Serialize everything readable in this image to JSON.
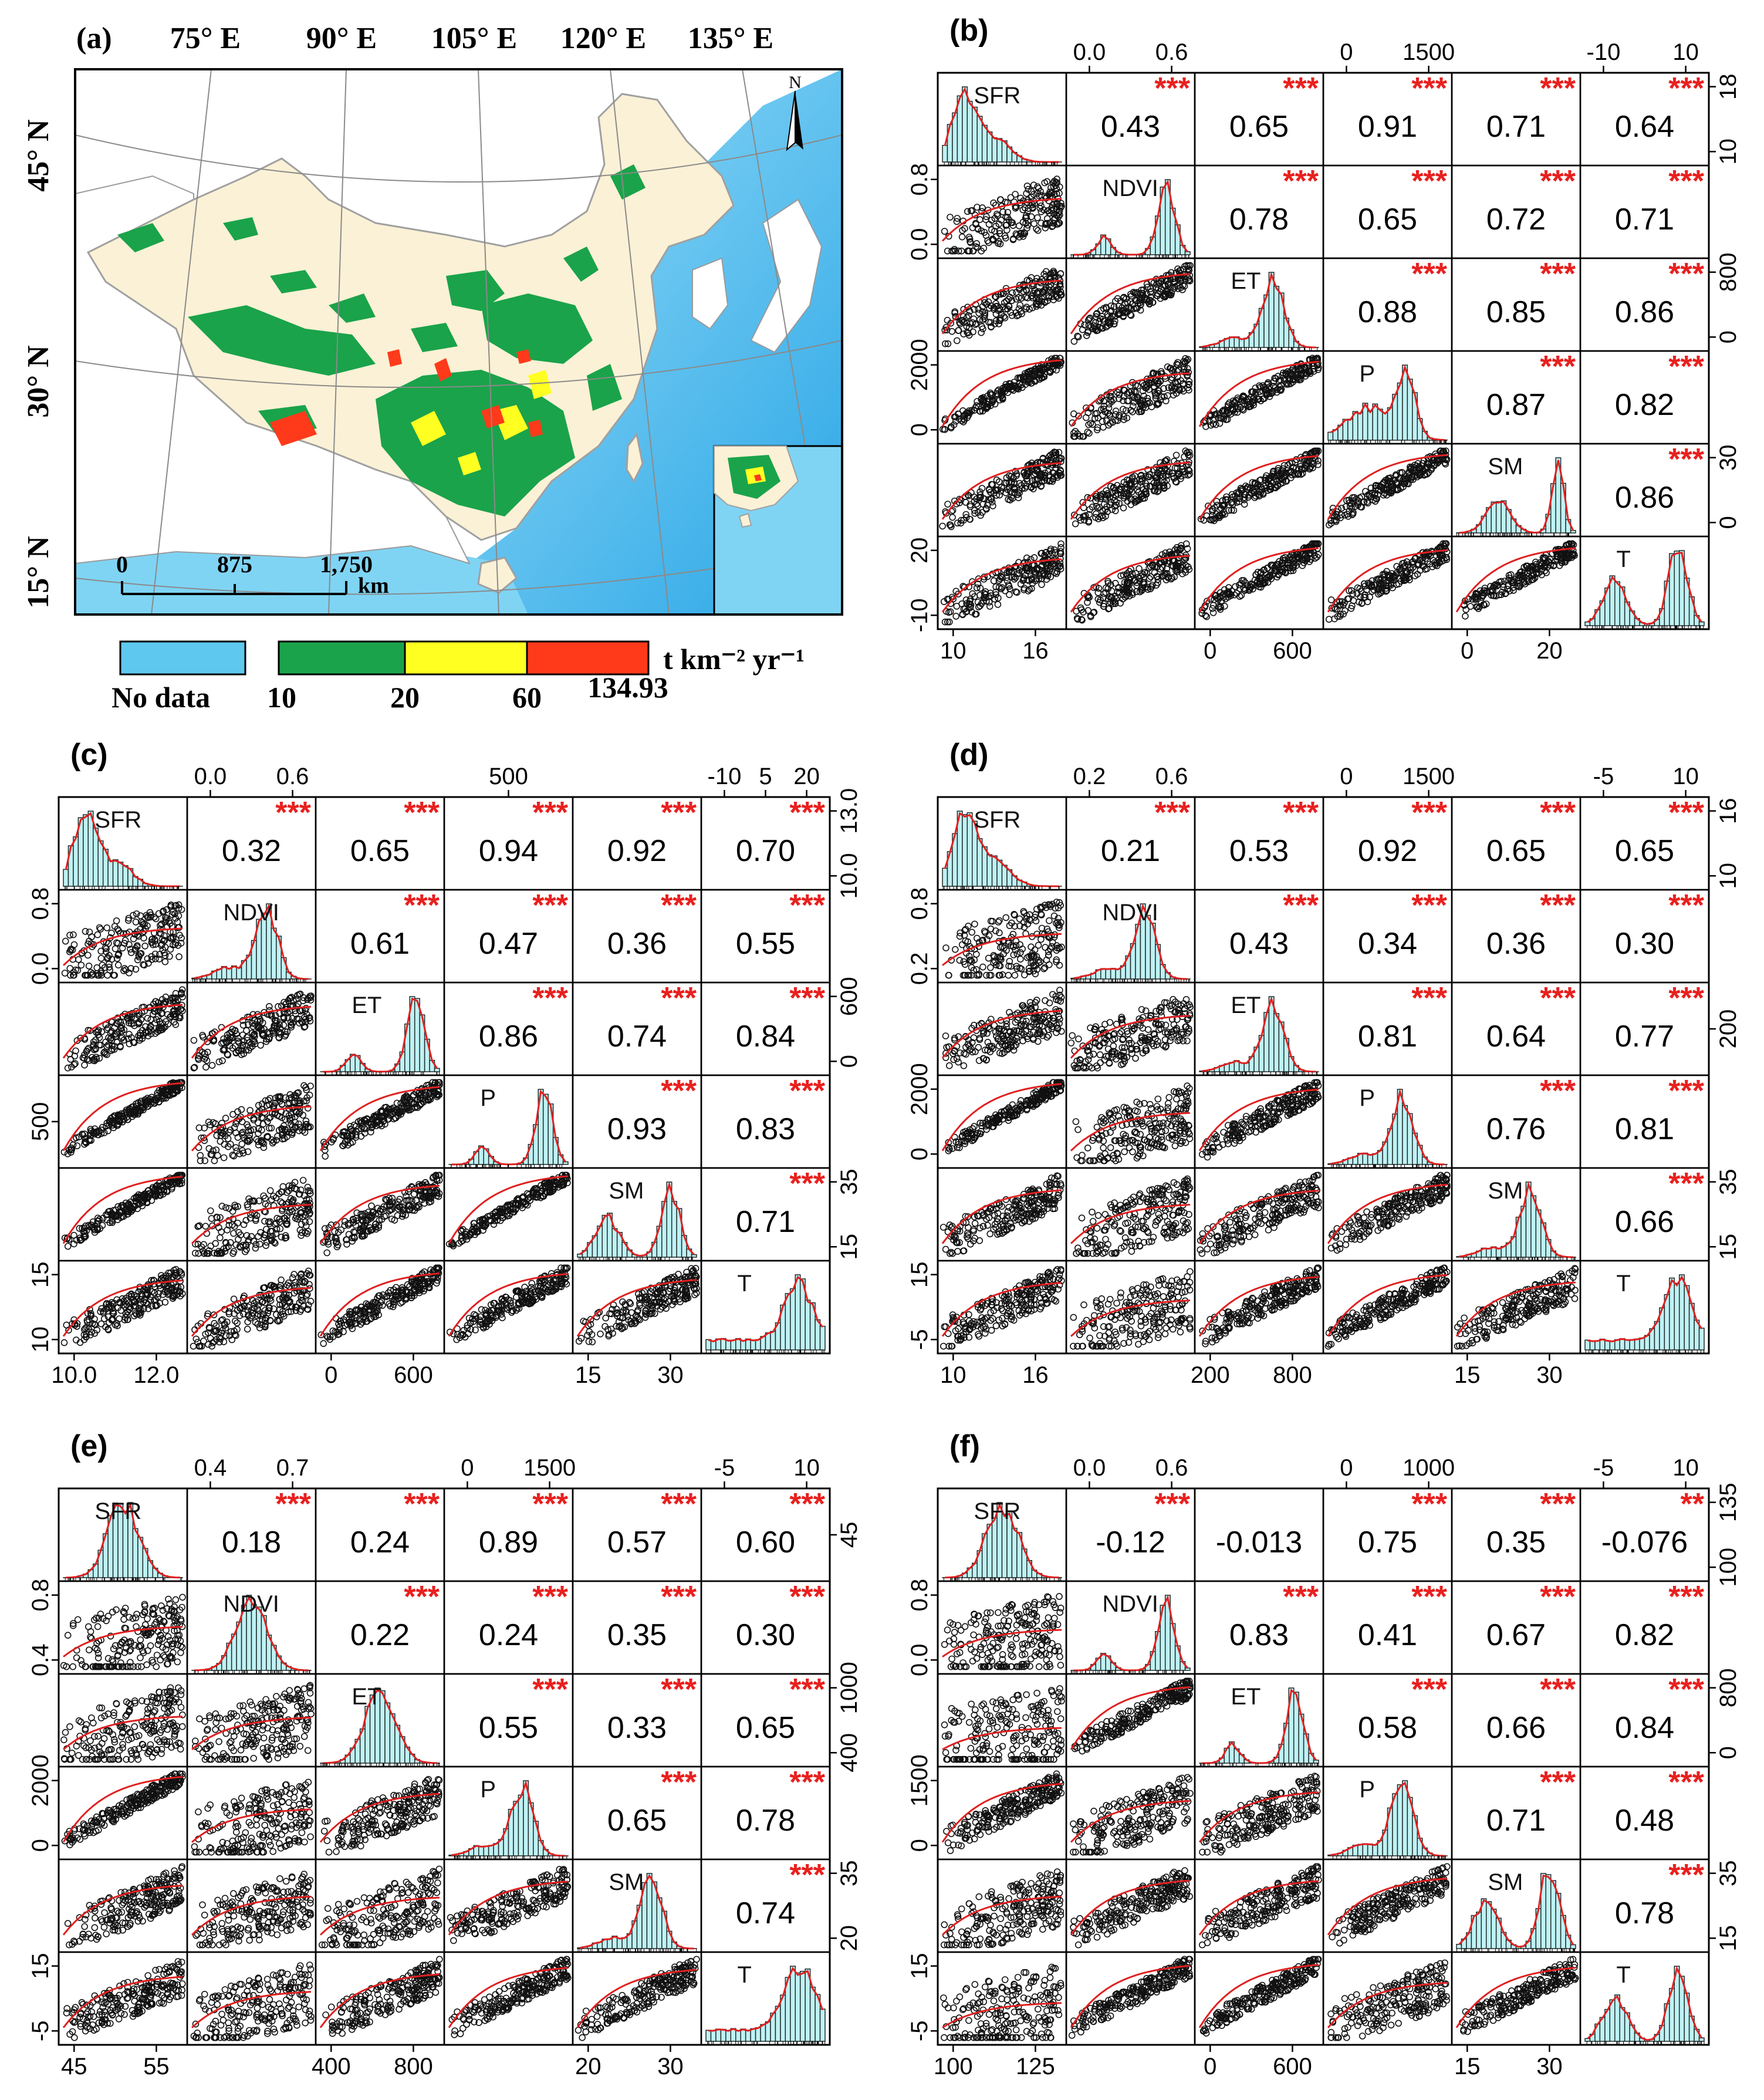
{
  "map_panel": {
    "label": "(a)",
    "lon_labels": [
      "75° E",
      "90° E",
      "105° E",
      "120° E",
      "135° E"
    ],
    "lat_labels": [
      "45° N",
      "30° N",
      "15° N"
    ],
    "north_label": "N",
    "scale": {
      "ticks": [
        "0",
        "875",
        "1,750"
      ],
      "unit": "km"
    },
    "legend": {
      "nodata_label": "No data",
      "unit_label": "t km⁻² yr⁻¹",
      "breaks": [
        "10",
        "20",
        "60",
        "134.93"
      ],
      "colors": {
        "nodata": "#5ec8ee",
        "low": "#1aa34a",
        "mid": "#ffff22",
        "high": "#ff3a1a",
        "china": "#fbf1d6",
        "sea": "#7fd4f4",
        "deepsea": "#2ea8e8",
        "foreign": "#ffffff"
      }
    }
  },
  "chart_data": [
    {
      "type": "pairs_matrix",
      "panel": "(b)",
      "variables": [
        "SFR",
        "NDVI",
        "ET",
        "P",
        "SM",
        "T"
      ],
      "correlations": [
        {
          "pair": "SFR-NDVI",
          "r": "0.43",
          "sig": "***"
        },
        {
          "pair": "SFR-ET",
          "r": "0.65",
          "sig": "***"
        },
        {
          "pair": "SFR-P",
          "r": "0.91",
          "sig": "***"
        },
        {
          "pair": "SFR-SM",
          "r": "0.71",
          "sig": "***"
        },
        {
          "pair": "SFR-T",
          "r": "0.64",
          "sig": "***"
        },
        {
          "pair": "NDVI-ET",
          "r": "0.78",
          "sig": "***"
        },
        {
          "pair": "NDVI-P",
          "r": "0.65",
          "sig": "***"
        },
        {
          "pair": "NDVI-SM",
          "r": "0.72",
          "sig": "***"
        },
        {
          "pair": "NDVI-T",
          "r": "0.71",
          "sig": "***"
        },
        {
          "pair": "ET-P",
          "r": "0.88",
          "sig": "***"
        },
        {
          "pair": "ET-SM",
          "r": "0.85",
          "sig": "***"
        },
        {
          "pair": "ET-T",
          "r": "0.86",
          "sig": "***"
        },
        {
          "pair": "P-SM",
          "r": "0.87",
          "sig": "***"
        },
        {
          "pair": "P-T",
          "r": "0.82",
          "sig": "***"
        },
        {
          "pair": "SM-T",
          "r": "0.86",
          "sig": "***"
        }
      ],
      "top_ticks": [
        [],
        [
          "0.0",
          "0.6"
        ],
        [],
        [
          "0",
          "1500"
        ],
        [],
        [
          "-10",
          "10"
        ]
      ],
      "bottom_ticks": [
        [
          "10",
          "16"
        ],
        [],
        [
          "0",
          "600"
        ],
        [],
        [
          "0",
          "20"
        ],
        []
      ],
      "left_ticks": [
        [],
        [
          "0.0",
          "0.8"
        ],
        [],
        [
          "0",
          "2000"
        ],
        [],
        [
          "-10",
          "20"
        ]
      ],
      "right_ticks": [
        [
          "10",
          "18"
        ],
        [],
        [
          "0",
          "800"
        ],
        [],
        [
          "0",
          "30"
        ],
        []
      ],
      "hist_shapes": [
        "skew",
        "twin",
        "peak",
        "plateau",
        "bimodal_right",
        "bimodal"
      ]
    },
    {
      "type": "pairs_matrix",
      "panel": "(c)",
      "variables": [
        "SFR",
        "NDVI",
        "ET",
        "P",
        "SM",
        "T"
      ],
      "correlations": [
        {
          "pair": "SFR-NDVI",
          "r": "0.32",
          "sig": "***"
        },
        {
          "pair": "SFR-ET",
          "r": "0.65",
          "sig": "***"
        },
        {
          "pair": "SFR-P",
          "r": "0.94",
          "sig": "***"
        },
        {
          "pair": "SFR-SM",
          "r": "0.92",
          "sig": "***"
        },
        {
          "pair": "SFR-T",
          "r": "0.70",
          "sig": "***"
        },
        {
          "pair": "NDVI-ET",
          "r": "0.61",
          "sig": "***"
        },
        {
          "pair": "NDVI-P",
          "r": "0.47",
          "sig": "***"
        },
        {
          "pair": "NDVI-SM",
          "r": "0.36",
          "sig": "***"
        },
        {
          "pair": "NDVI-T",
          "r": "0.55",
          "sig": "***"
        },
        {
          "pair": "ET-P",
          "r": "0.86",
          "sig": "***"
        },
        {
          "pair": "ET-SM",
          "r": "0.74",
          "sig": "***"
        },
        {
          "pair": "ET-T",
          "r": "0.84",
          "sig": "***"
        },
        {
          "pair": "P-SM",
          "r": "0.93",
          "sig": "***"
        },
        {
          "pair": "P-T",
          "r": "0.83",
          "sig": "***"
        },
        {
          "pair": "SM-T",
          "r": "0.71",
          "sig": "***"
        }
      ],
      "top_ticks": [
        [],
        [
          "0.0",
          "0.6"
        ],
        [],
        [
          "500"
        ],
        [],
        [
          "-10",
          "5",
          "20"
        ]
      ],
      "bottom_ticks": [
        [
          "10.0",
          "12.0"
        ],
        [],
        [
          "0",
          "600"
        ],
        [],
        [
          "15",
          "30"
        ],
        []
      ],
      "left_ticks": [
        [],
        [
          "0.0",
          "0.8"
        ],
        [],
        [
          "500"
        ],
        [],
        [
          "10",
          "15"
        ]
      ],
      "right_ticks": [
        [
          "10.0",
          "13.0"
        ],
        [],
        [
          "0",
          "600"
        ],
        [],
        [
          "15",
          "35"
        ],
        []
      ],
      "hist_shapes": [
        "skew",
        "peak",
        "twin",
        "twin",
        "bimodal",
        "rise"
      ]
    },
    {
      "type": "pairs_matrix",
      "panel": "(d)",
      "variables": [
        "SFR",
        "NDVI",
        "ET",
        "P",
        "SM",
        "T"
      ],
      "correlations": [
        {
          "pair": "SFR-NDVI",
          "r": "0.21",
          "sig": "***"
        },
        {
          "pair": "SFR-ET",
          "r": "0.53",
          "sig": "***"
        },
        {
          "pair": "SFR-P",
          "r": "0.92",
          "sig": "***"
        },
        {
          "pair": "SFR-SM",
          "r": "0.65",
          "sig": "***"
        },
        {
          "pair": "SFR-T",
          "r": "0.65",
          "sig": "***"
        },
        {
          "pair": "NDVI-ET",
          "r": "0.43",
          "sig": "***"
        },
        {
          "pair": "NDVI-P",
          "r": "0.34",
          "sig": "***"
        },
        {
          "pair": "NDVI-SM",
          "r": "0.36",
          "sig": "***"
        },
        {
          "pair": "NDVI-T",
          "r": "0.30",
          "sig": "***"
        },
        {
          "pair": "ET-P",
          "r": "0.81",
          "sig": "***"
        },
        {
          "pair": "ET-SM",
          "r": "0.64",
          "sig": "***"
        },
        {
          "pair": "ET-T",
          "r": "0.77",
          "sig": "***"
        },
        {
          "pair": "P-SM",
          "r": "0.76",
          "sig": "***"
        },
        {
          "pair": "P-T",
          "r": "0.81",
          "sig": "***"
        },
        {
          "pair": "SM-T",
          "r": "0.66",
          "sig": "***"
        }
      ],
      "top_ticks": [
        [],
        [
          "0.2",
          "0.6"
        ],
        [],
        [
          "0",
          "1500"
        ],
        [],
        [
          "-5",
          "10"
        ]
      ],
      "bottom_ticks": [
        [
          "10",
          "16"
        ],
        [],
        [
          "200",
          "800"
        ],
        [],
        [
          "15",
          "30"
        ],
        []
      ],
      "left_ticks": [
        [],
        [
          "0.2",
          "0.8"
        ],
        [],
        [
          "0",
          "2000"
        ],
        [],
        [
          "-5",
          "15"
        ]
      ],
      "right_ticks": [
        [
          "10",
          "16"
        ],
        [],
        [
          "200"
        ],
        [],
        [
          "15",
          "35"
        ],
        []
      ],
      "hist_shapes": [
        "skew",
        "peak",
        "peak",
        "peak",
        "peak",
        "rise"
      ]
    },
    {
      "type": "pairs_matrix",
      "panel": "(e)",
      "variables": [
        "SFR",
        "NDVI",
        "ET",
        "P",
        "SM",
        "T"
      ],
      "correlations": [
        {
          "pair": "SFR-NDVI",
          "r": "0.18",
          "sig": "***"
        },
        {
          "pair": "SFR-ET",
          "r": "0.24",
          "sig": "***"
        },
        {
          "pair": "SFR-P",
          "r": "0.89",
          "sig": "***"
        },
        {
          "pair": "SFR-SM",
          "r": "0.57",
          "sig": "***"
        },
        {
          "pair": "SFR-T",
          "r": "0.60",
          "sig": "***"
        },
        {
          "pair": "NDVI-ET",
          "r": "0.22",
          "sig": "***"
        },
        {
          "pair": "NDVI-P",
          "r": "0.24",
          "sig": "***"
        },
        {
          "pair": "NDVI-SM",
          "r": "0.35",
          "sig": "***"
        },
        {
          "pair": "NDVI-T",
          "r": "0.30",
          "sig": "***"
        },
        {
          "pair": "ET-P",
          "r": "0.55",
          "sig": "***"
        },
        {
          "pair": "ET-SM",
          "r": "0.33",
          "sig": "***"
        },
        {
          "pair": "ET-T",
          "r": "0.65",
          "sig": "***"
        },
        {
          "pair": "P-SM",
          "r": "0.65",
          "sig": "***"
        },
        {
          "pair": "P-T",
          "r": "0.78",
          "sig": "***"
        },
        {
          "pair": "SM-T",
          "r": "0.74",
          "sig": "***"
        }
      ],
      "top_ticks": [
        [],
        [
          "0.4",
          "0.7"
        ],
        [],
        [
          "0",
          "1500"
        ],
        [],
        [
          "-5",
          "10"
        ]
      ],
      "bottom_ticks": [
        [
          "45",
          "55"
        ],
        [],
        [
          "400",
          "800"
        ],
        [],
        [
          "20",
          "30"
        ],
        []
      ],
      "left_ticks": [
        [],
        [
          "0.4",
          "0.8"
        ],
        [],
        [
          "0",
          "2000"
        ],
        [],
        [
          "-5",
          "15"
        ]
      ],
      "right_ticks": [
        [
          "45"
        ],
        [],
        [
          "400",
          "1000"
        ],
        [],
        [
          "20",
          "35"
        ],
        []
      ],
      "hist_shapes": [
        "normal",
        "normal",
        "normal",
        "peak",
        "peak",
        "rise"
      ]
    },
    {
      "type": "pairs_matrix",
      "panel": "(f)",
      "variables": [
        "SFR",
        "NDVI",
        "ET",
        "P",
        "SM",
        "T"
      ],
      "correlations": [
        {
          "pair": "SFR-NDVI",
          "r": "-0.12",
          "sig": "***"
        },
        {
          "pair": "SFR-ET",
          "r": "-0.013",
          "sig": ""
        },
        {
          "pair": "SFR-P",
          "r": "0.75",
          "sig": "***"
        },
        {
          "pair": "SFR-SM",
          "r": "0.35",
          "sig": "***"
        },
        {
          "pair": "SFR-T",
          "r": "-0.076",
          "sig": "**"
        },
        {
          "pair": "NDVI-ET",
          "r": "0.83",
          "sig": "***"
        },
        {
          "pair": "NDVI-P",
          "r": "0.41",
          "sig": "***"
        },
        {
          "pair": "NDVI-SM",
          "r": "0.67",
          "sig": "***"
        },
        {
          "pair": "NDVI-T",
          "r": "0.82",
          "sig": "***"
        },
        {
          "pair": "ET-P",
          "r": "0.58",
          "sig": "***"
        },
        {
          "pair": "ET-SM",
          "r": "0.66",
          "sig": "***"
        },
        {
          "pair": "ET-T",
          "r": "0.84",
          "sig": "***"
        },
        {
          "pair": "P-SM",
          "r": "0.71",
          "sig": "***"
        },
        {
          "pair": "P-T",
          "r": "0.48",
          "sig": "***"
        },
        {
          "pair": "SM-T",
          "r": "0.78",
          "sig": "***"
        }
      ],
      "top_ticks": [
        [],
        [
          "0.0",
          "0.6"
        ],
        [],
        [
          "0",
          "1000"
        ],
        [],
        [
          "-5",
          "10"
        ]
      ],
      "bottom_ticks": [
        [
          "100",
          "125"
        ],
        [],
        [
          "0",
          "600"
        ],
        [],
        [
          "15",
          "30"
        ],
        []
      ],
      "left_ticks": [
        [],
        [
          "0.0",
          "0.8"
        ],
        [],
        [
          "0",
          "1500"
        ],
        [],
        [
          "-5",
          "15"
        ]
      ],
      "right_ticks": [
        [
          "100",
          "135"
        ],
        [],
        [
          "0",
          "800"
        ],
        [],
        [
          "15",
          "35"
        ],
        []
      ],
      "hist_shapes": [
        "normal",
        "twin",
        "twin",
        "peak",
        "bimodal",
        "bimodal"
      ]
    }
  ]
}
